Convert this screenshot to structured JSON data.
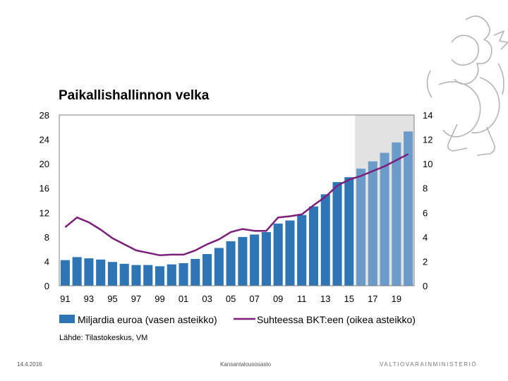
{
  "chart_data": {
    "type": "bar+line",
    "title": "Paikallishallinnon velka",
    "categories": [
      "91",
      "92",
      "93",
      "94",
      "95",
      "96",
      "97",
      "98",
      "99",
      "00",
      "01",
      "02",
      "03",
      "04",
      "05",
      "06",
      "07",
      "08",
      "09",
      "10",
      "11",
      "12",
      "13",
      "14",
      "15",
      "16",
      "17",
      "18",
      "19",
      "20"
    ],
    "x_tick_labels": [
      "91",
      "93",
      "95",
      "97",
      "99",
      "01",
      "03",
      "05",
      "07",
      "09",
      "11",
      "13",
      "15",
      "17",
      "19"
    ],
    "left_axis": {
      "ylim": [
        0,
        28
      ],
      "ticks": [
        "0",
        "4",
        "8",
        "12",
        "16",
        "20",
        "24",
        "28"
      ]
    },
    "right_axis": {
      "ylim": [
        0,
        14
      ],
      "ticks": [
        "0",
        "2",
        "4",
        "6",
        "8",
        "10",
        "12",
        "14"
      ]
    },
    "forecast_start": "16",
    "series": [
      {
        "name": "Miljardia euroa (vasen asteikko)",
        "type": "bar",
        "axis": "left",
        "color": "#2e75b6",
        "forecast_color": "#6b9bc9",
        "values": [
          4.2,
          4.7,
          4.5,
          4.3,
          3.9,
          3.6,
          3.4,
          3.4,
          3.2,
          3.5,
          3.7,
          4.4,
          5.2,
          6.2,
          7.3,
          8.0,
          8.4,
          8.8,
          10.2,
          10.7,
          11.6,
          13.0,
          15.0,
          17.0,
          17.8,
          19.2,
          20.4,
          21.8,
          23.5,
          25.3
        ]
      },
      {
        "name": "Suhteessa BKT:een (oikea asteikko)",
        "type": "line",
        "axis": "right",
        "color": "#7b1f7b",
        "values": [
          4.8,
          5.6,
          5.2,
          4.6,
          3.9,
          3.4,
          2.9,
          2.7,
          2.5,
          2.55,
          2.55,
          2.9,
          3.4,
          3.8,
          4.4,
          4.65,
          4.5,
          4.5,
          5.6,
          5.7,
          5.85,
          6.6,
          7.3,
          8.2,
          8.7,
          9.0,
          9.4,
          9.8,
          10.3,
          10.8
        ]
      }
    ]
  },
  "source": "Lähde: Tilastokeskus, VM",
  "footer": {
    "date": "14.4.2016",
    "department": "Kansantalousosasto",
    "brand": "VALTIOVARAINMINISTERIÖ"
  },
  "colors": {
    "forecast_band": "#e2e2e2",
    "bar": "#2e75b6",
    "bar_forecast": "#6b9bc9",
    "line": "#7b1f7b"
  }
}
